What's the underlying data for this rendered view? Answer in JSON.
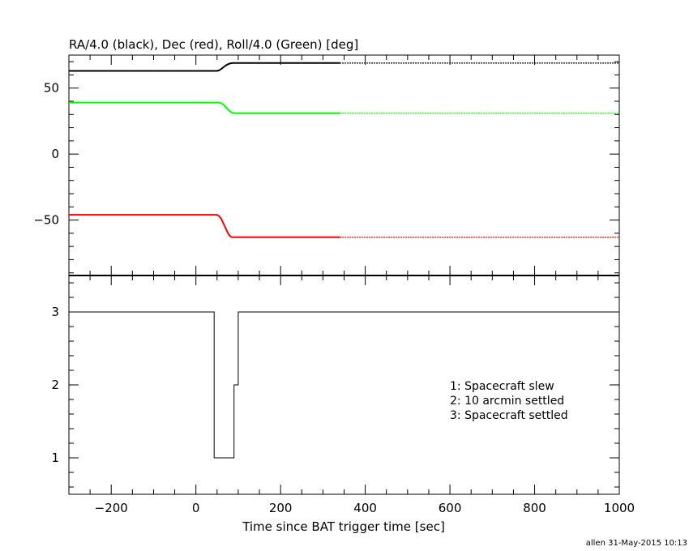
{
  "chart_data": [
    {
      "type": "line",
      "title": "RA/4.0 (black), Dec (red), Roll/4.0 (Green) [deg]",
      "xlabel": "",
      "ylabel": "",
      "xlim": [
        -300,
        1000
      ],
      "ylim": [
        -92,
        75
      ],
      "y_ticks": [
        50,
        0,
        -50
      ],
      "y_tick_labels": [
        "50",
        "0",
        "−50"
      ],
      "grid": false,
      "legend": "none",
      "solid_until_x": 340,
      "series": [
        {
          "color": "#000000",
          "x": [
            -300,
            50,
            55,
            60,
            65,
            70,
            75,
            80,
            85,
            90,
            100,
            340,
            1000
          ],
          "y": [
            63,
            63,
            63.5,
            64.5,
            65.8,
            67,
            68,
            68.6,
            68.9,
            69,
            69,
            69,
            69
          ]
        },
        {
          "color": "#00ff00",
          "x": [
            -300,
            55,
            60,
            65,
            70,
            75,
            80,
            85,
            90,
            100,
            340,
            1000
          ],
          "y": [
            39,
            39,
            38.5,
            37.4,
            35.8,
            34,
            32.5,
            31.5,
            31,
            31,
            31,
            31
          ]
        },
        {
          "color": "#ff0000",
          "x": [
            -300,
            50,
            55,
            60,
            65,
            70,
            75,
            80,
            85,
            90,
            100,
            340,
            1000
          ],
          "y": [
            -46,
            -46,
            -47,
            -49,
            -52.5,
            -56,
            -59.5,
            -62,
            -63,
            -63,
            -63,
            -63,
            -63
          ]
        }
      ]
    },
    {
      "type": "line",
      "title": "",
      "xlabel": "Time since BAT trigger time [sec]",
      "ylabel": "",
      "xlim": [
        -300,
        1000
      ],
      "ylim": [
        0.5,
        3.5
      ],
      "x_ticks": [
        -200,
        0,
        200,
        400,
        600,
        800,
        1000
      ],
      "x_tick_labels": [
        "−200",
        "0",
        "200",
        "400",
        "600",
        "800",
        "1000"
      ],
      "y_ticks": [
        1,
        2,
        3
      ],
      "y_tick_labels": [
        "1",
        "2",
        "3"
      ],
      "grid": false,
      "legend": "none",
      "annotations": [
        "1: Spacecraft slew",
        "2: 10 arcmin settled",
        "3: Spacecraft settled"
      ],
      "series": [
        {
          "color": "#000000",
          "step": true,
          "x": [
            -300,
            43,
            43,
            90,
            90,
            100,
            100,
            1000
          ],
          "y": [
            3,
            3,
            1,
            1,
            2,
            2,
            3,
            3
          ]
        }
      ]
    }
  ],
  "footer": "allen 31-May-2015 10:13"
}
